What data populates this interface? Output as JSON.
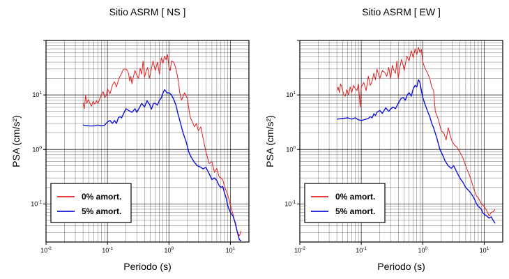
{
  "chart_data": [
    {
      "type": "line",
      "title": "Sitio ASRM [ NS ]",
      "xlabel": "Periodo (s)",
      "ylabel": "PSA (cm/s²)",
      "xscale": "log",
      "yscale": "log",
      "xlim": [
        0.01,
        20
      ],
      "ylim": [
        0.02,
        100
      ],
      "xtick_labels": [
        "10-2",
        "10-1",
        "100",
        "101"
      ],
      "ytick_labels": [
        "10-1",
        "100",
        "101"
      ],
      "grid": true,
      "legend_position": "bottom-left",
      "series": [
        {
          "name": "0% amort.",
          "color": "#e32020",
          "x": [
            0.04,
            0.042,
            0.044,
            0.046,
            0.049,
            0.052,
            0.055,
            0.058,
            0.062,
            0.066,
            0.07,
            0.075,
            0.08,
            0.085,
            0.09,
            0.096,
            0.1,
            0.11,
            0.12,
            0.13,
            0.14,
            0.15,
            0.16,
            0.17,
            0.18,
            0.19,
            0.2,
            0.21,
            0.22,
            0.23,
            0.24,
            0.25,
            0.26,
            0.28,
            0.3,
            0.32,
            0.34,
            0.36,
            0.38,
            0.4,
            0.42,
            0.45,
            0.48,
            0.5,
            0.55,
            0.6,
            0.65,
            0.7,
            0.75,
            0.8,
            0.85,
            0.9,
            0.95,
            1.0,
            1.05,
            1.1,
            1.2,
            1.3,
            1.4,
            1.5,
            1.6,
            1.8,
            2.0,
            2.2,
            2.4,
            2.6,
            2.8,
            3.0,
            3.3,
            3.6,
            4.0,
            4.5,
            5.0,
            5.5,
            6.0,
            6.5,
            7.0,
            7.5,
            8.0,
            9.0,
            10.0,
            11.0,
            12.0,
            13.0,
            14.0,
            15.0
          ],
          "y": [
            7.2,
            5.6,
            9.8,
            7.0,
            8.2,
            7.0,
            6.2,
            7.6,
            6.8,
            7.8,
            7.0,
            8.5,
            10.2,
            11.5,
            9.0,
            9.8,
            13.0,
            10.5,
            15.0,
            17.5,
            14.0,
            18.5,
            22.0,
            25.0,
            29.0,
            30.0,
            30.0,
            28.0,
            25.0,
            18.0,
            22.0,
            16.0,
            20.0,
            28.0,
            23.0,
            20.0,
            31.0,
            24.0,
            42.0,
            21.0,
            26.0,
            32.0,
            20.0,
            25.0,
            42.0,
            28.0,
            40.0,
            24.0,
            48.0,
            38.0,
            52.0,
            44.0,
            55.0,
            32.0,
            28.0,
            42.0,
            40.0,
            30.0,
            20.0,
            11.0,
            8.0,
            11.0,
            8.5,
            4.0,
            3.2,
            2.6,
            3.0,
            2.2,
            2.6,
            1.6,
            0.9,
            0.55,
            0.6,
            0.38,
            0.45,
            0.32,
            0.3,
            0.28,
            0.21,
            0.15,
            0.095,
            0.065,
            0.042,
            0.03,
            0.026,
            0.032
          ]
        },
        {
          "name": "5% amort.",
          "color": "#1010d8",
          "x": [
            0.04,
            0.05,
            0.06,
            0.07,
            0.08,
            0.09,
            0.1,
            0.11,
            0.12,
            0.13,
            0.14,
            0.15,
            0.16,
            0.17,
            0.18,
            0.2,
            0.22,
            0.25,
            0.28,
            0.3,
            0.33,
            0.36,
            0.4,
            0.44,
            0.48,
            0.52,
            0.56,
            0.6,
            0.65,
            0.7,
            0.75,
            0.8,
            0.85,
            0.9,
            0.95,
            1.0,
            1.1,
            1.2,
            1.3,
            1.4,
            1.5,
            1.7,
            1.9,
            2.1,
            2.3,
            2.6,
            2.9,
            3.2,
            3.6,
            4.0,
            4.5,
            5.0,
            5.5,
            6.0,
            6.5,
            7.0,
            7.5,
            8.0,
            8.5,
            9.0,
            9.5,
            10.0,
            11.0,
            12.0,
            13.0,
            14.0,
            15.0
          ],
          "y": [
            2.8,
            2.7,
            2.7,
            2.8,
            2.7,
            2.8,
            3.2,
            3.4,
            3.0,
            3.4,
            3.0,
            3.8,
            4.0,
            3.8,
            4.4,
            5.6,
            5.2,
            4.8,
            5.6,
            4.8,
            5.8,
            7.0,
            6.0,
            7.8,
            6.8,
            5.5,
            7.0,
            7.0,
            6.5,
            8.0,
            8.8,
            11.0,
            12.5,
            11.5,
            10.8,
            11.0,
            10.0,
            8.2,
            6.5,
            4.5,
            3.4,
            2.0,
            1.4,
            0.9,
            0.72,
            0.58,
            0.5,
            0.48,
            0.44,
            0.47,
            0.36,
            0.28,
            0.3,
            0.27,
            0.22,
            0.2,
            0.21,
            0.16,
            0.13,
            0.095,
            0.08,
            0.07,
            0.06,
            0.045,
            0.03,
            0.022,
            0.021
          ]
        }
      ]
    },
    {
      "type": "line",
      "title": "Sitio ASRM [ EW ]",
      "xlabel": "Periodo (s)",
      "ylabel": "PSA (cm/s²)",
      "xscale": "log",
      "yscale": "log",
      "xlim": [
        0.01,
        20
      ],
      "ylim": [
        0.02,
        100
      ],
      "xtick_labels": [
        "10-2",
        "10-1",
        "100",
        "101"
      ],
      "ytick_labels": [
        "10-1",
        "100",
        "101"
      ],
      "grid": true,
      "legend_position": "bottom-left",
      "series": [
        {
          "name": "0% amort.",
          "color": "#e32020",
          "x": [
            0.04,
            0.042,
            0.044,
            0.046,
            0.049,
            0.052,
            0.055,
            0.058,
            0.062,
            0.066,
            0.07,
            0.075,
            0.08,
            0.085,
            0.09,
            0.096,
            0.1,
            0.11,
            0.12,
            0.13,
            0.14,
            0.15,
            0.16,
            0.17,
            0.18,
            0.19,
            0.2,
            0.22,
            0.24,
            0.26,
            0.28,
            0.3,
            0.32,
            0.34,
            0.36,
            0.38,
            0.4,
            0.42,
            0.45,
            0.48,
            0.5,
            0.55,
            0.6,
            0.65,
            0.7,
            0.75,
            0.8,
            0.85,
            0.9,
            0.95,
            1.0,
            1.1,
            1.2,
            1.3,
            1.4,
            1.5,
            1.6,
            1.8,
            2.0,
            2.2,
            2.4,
            2.6,
            2.8,
            3.0,
            3.3,
            3.6,
            4.0,
            4.5,
            5.0,
            5.5,
            6.0,
            6.5,
            7.0,
            7.5,
            8.0,
            9.0,
            10.0,
            11.0,
            12.0,
            13.0,
            14.0,
            15.0
          ],
          "y": [
            12.0,
            14.0,
            11.0,
            16.0,
            13.0,
            10.0,
            9.5,
            12.5,
            10.0,
            14.0,
            11.0,
            15.0,
            13.0,
            12.0,
            16.0,
            6.0,
            14.0,
            17.0,
            12.0,
            22.0,
            15.0,
            18.0,
            25.0,
            19.0,
            30.0,
            24.0,
            20.0,
            28.0,
            26.0,
            22.0,
            32.0,
            20.0,
            35.0,
            28.0,
            25.0,
            42.0,
            20.0,
            30.0,
            45.0,
            35.0,
            28.0,
            52.0,
            42.0,
            65.0,
            48.0,
            70.0,
            55.0,
            75.0,
            60.0,
            68.0,
            40.0,
            30.0,
            25.0,
            20.0,
            14.0,
            12.0,
            5.0,
            3.5,
            2.2,
            2.0,
            1.5,
            2.5,
            1.8,
            1.4,
            1.2,
            1.1,
            0.9,
            0.7,
            0.5,
            0.38,
            0.3,
            0.22,
            0.17,
            0.14,
            0.13,
            0.1,
            0.09,
            0.075,
            0.06,
            0.07,
            0.072,
            0.08
          ]
        },
        {
          "name": "5% amort.",
          "color": "#1010d8",
          "x": [
            0.04,
            0.05,
            0.06,
            0.07,
            0.08,
            0.09,
            0.1,
            0.11,
            0.12,
            0.13,
            0.14,
            0.15,
            0.16,
            0.17,
            0.18,
            0.2,
            0.22,
            0.25,
            0.28,
            0.3,
            0.33,
            0.36,
            0.4,
            0.44,
            0.48,
            0.52,
            0.56,
            0.6,
            0.65,
            0.7,
            0.75,
            0.8,
            0.85,
            0.9,
            0.95,
            1.0,
            1.1,
            1.2,
            1.3,
            1.4,
            1.5,
            1.7,
            1.9,
            2.1,
            2.3,
            2.6,
            2.9,
            3.2,
            3.6,
            4.0,
            4.5,
            5.0,
            5.5,
            6.0,
            6.5,
            7.0,
            7.5,
            8.0,
            8.5,
            9.0,
            9.5,
            10.0,
            11.0,
            12.0,
            13.0,
            14.0,
            15.0
          ],
          "y": [
            3.6,
            3.7,
            3.8,
            3.6,
            3.8,
            3.5,
            3.4,
            3.5,
            3.6,
            3.7,
            4.0,
            3.8,
            4.5,
            4.2,
            4.8,
            5.2,
            4.6,
            5.8,
            5.0,
            5.5,
            6.0,
            5.6,
            7.0,
            8.5,
            9.0,
            8.0,
            10.0,
            11.0,
            9.5,
            13.0,
            15.0,
            14.0,
            19.0,
            17.0,
            12.0,
            9.0,
            6.5,
            5.0,
            4.0,
            3.0,
            2.5,
            1.6,
            1.0,
            0.8,
            0.62,
            0.5,
            0.45,
            0.5,
            0.38,
            0.3,
            0.25,
            0.2,
            0.18,
            0.16,
            0.14,
            0.12,
            0.1,
            0.09,
            0.085,
            0.08,
            0.068,
            0.065,
            0.06,
            0.055,
            0.058,
            0.05,
            0.044
          ]
        }
      ]
    }
  ]
}
